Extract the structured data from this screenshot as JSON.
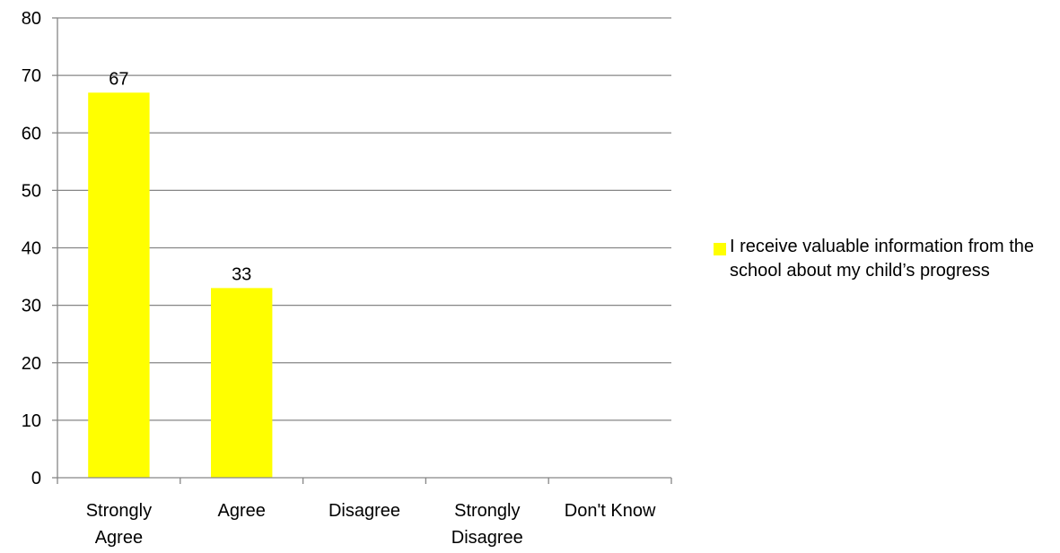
{
  "colors": {
    "bar": "#FFFF00",
    "gridline": "#868686",
    "axis": "#868686",
    "text": "#000000"
  },
  "chart_data": {
    "type": "bar",
    "categories": [
      "Strongly Agree",
      "Agree",
      "Disagree",
      "Strongly Disagree",
      "Don't Know"
    ],
    "category_lines": [
      [
        "Strongly",
        "Agree"
      ],
      [
        "Agree"
      ],
      [
        "Disagree"
      ],
      [
        "Strongly",
        "Disagree"
      ],
      [
        "Don't Know"
      ]
    ],
    "series": [
      {
        "name": "I receive valuable information from the school about my child’s progress",
        "values": [
          67,
          33,
          0,
          0,
          0
        ],
        "data_labels": [
          "67",
          "33",
          "",
          "",
          ""
        ]
      }
    ],
    "y_ticks": [
      "0",
      "10",
      "20",
      "30",
      "40",
      "50",
      "60",
      "70",
      "80"
    ],
    "ylim": [
      0,
      80
    ],
    "ystep": 10,
    "grid": true,
    "legend_position": "right"
  }
}
